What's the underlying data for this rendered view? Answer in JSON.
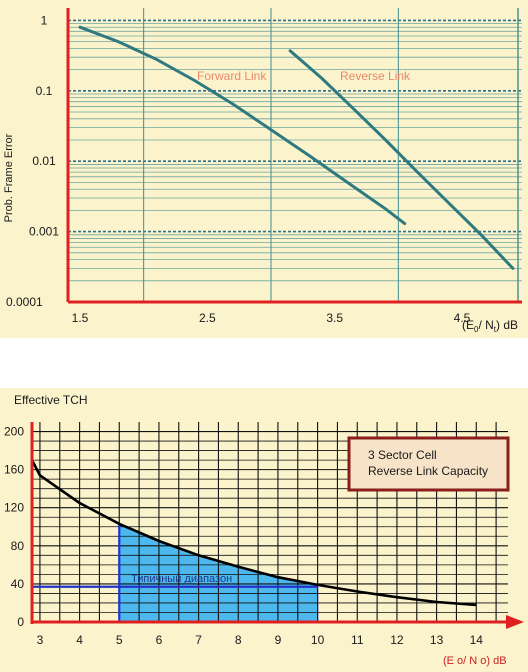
{
  "chart_data": [
    {
      "type": "line",
      "title": "",
      "ylabel": "Prob. Frame Error",
      "xlabel_parts": [
        "(E",
        "0",
        "/ N",
        "t",
        ") dB"
      ],
      "x_ticks": [
        1.5,
        2.5,
        3.5,
        4.5
      ],
      "x_tick_labels": [
        "1.5",
        "2.5",
        "3.5",
        "4.5"
      ],
      "xlim": [
        1.5,
        5.0
      ],
      "y_scale": "log",
      "y_ticks": [
        1,
        0.1,
        0.01,
        0.001,
        0.0001
      ],
      "y_tick_labels": [
        "1",
        "0.1",
        "0.01",
        "0.001",
        "0.0001"
      ],
      "ylim": [
        0.0001,
        1.5
      ],
      "grid": true,
      "series": [
        {
          "name": "Forward Link",
          "color": "#2e7a7f",
          "x": [
            1.5,
            1.8,
            2.1,
            2.4,
            2.7,
            3.0,
            3.3,
            3.6,
            3.9,
            4.05
          ],
          "y": [
            0.8,
            0.5,
            0.28,
            0.14,
            0.065,
            0.028,
            0.012,
            0.005,
            0.0021,
            0.0013
          ]
        },
        {
          "name": "Reverse Link",
          "color": "#2e7a7f",
          "x": [
            3.15,
            3.4,
            3.65,
            3.9,
            4.15,
            4.4,
            4.65,
            4.9
          ],
          "y": [
            0.37,
            0.15,
            0.055,
            0.02,
            0.007,
            0.0025,
            0.0009,
            0.0003
          ]
        }
      ],
      "label_color": "#e88a6a",
      "frame_color": "#e02020",
      "background": "#fbf3cc"
    },
    {
      "type": "area",
      "title": "3 Sector Cell\nReverse Link Capacity",
      "title_lines": [
        "3 Sector Cell",
        "Reverse Link Capacity"
      ],
      "ylabel": "Effective TCH",
      "xlabel": "(E o/ N o)  dB",
      "x_ticks": [
        3,
        4,
        5,
        6,
        7,
        8,
        9,
        10,
        11,
        12,
        13,
        14
      ],
      "x_tick_labels": [
        "3",
        "4",
        "5",
        "6",
        "7",
        "8",
        "9",
        "10",
        "11",
        "12",
        "13",
        "14"
      ],
      "xlim": [
        2.8,
        14.8
      ],
      "y_ticks": [
        0,
        40,
        80,
        120,
        160,
        200
      ],
      "y_tick_labels": [
        "0",
        "40",
        "80",
        "120",
        "160",
        "200"
      ],
      "ylim": [
        0,
        210
      ],
      "grid": true,
      "series": [
        {
          "name": "",
          "color": "#000000",
          "x": [
            2.8,
            3,
            4,
            5,
            6,
            7,
            8,
            9,
            10,
            11,
            12,
            13,
            14
          ],
          "y": [
            170,
            154,
            125,
            103,
            85,
            70,
            58,
            47,
            39,
            32,
            26,
            21,
            18
          ]
        }
      ],
      "shaded_range": {
        "x": [
          5,
          10
        ],
        "label": "Типичный диапазон",
        "color": "#4cb8ee"
      },
      "reference_line": {
        "y": 37,
        "x": [
          2.8,
          10
        ],
        "color": "#2233cc"
      },
      "legend_box_border": "#8b1d1d",
      "frame_color": "#e02020",
      "xlabel_color": "#cc2020",
      "background": "#fbf3cc"
    }
  ]
}
